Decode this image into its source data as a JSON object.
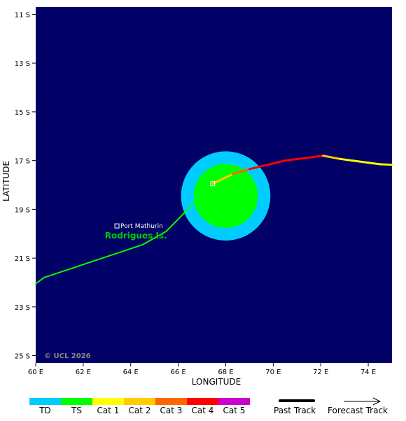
{
  "map": {
    "background_color": "#000066",
    "lon_range": [
      60,
      75
    ],
    "lat_range": [
      -25.3,
      -10.7
    ],
    "lon_ticks": [
      "60 E",
      "62 E",
      "64 E",
      "66 E",
      "68 E",
      "70 E",
      "72 E",
      "74 E"
    ],
    "lat_ticks": [
      "11 S",
      "13 S",
      "15 S",
      "17 S",
      "19 S",
      "21 S",
      "23 S",
      "25 S"
    ],
    "xlabel": "LONGITUDE",
    "ylabel": "LATITUDE",
    "copyright": "© UCL 2026"
  },
  "places": {
    "town": "Port Mathurin",
    "island": "Rodrigues Is.",
    "town_lonlat": [
      63.42,
      -19.68
    ],
    "island_lonlat": [
      63.5,
      -20.05
    ]
  },
  "storm": {
    "center_lonlat": [
      68.0,
      -18.45
    ],
    "wind_radius_deg": {
      "td": 1.88,
      "ts": 1.35
    },
    "current_position_lonlat": [
      67.45,
      -17.95
    ]
  },
  "past_track": [
    {
      "lonlat": [
        60.0,
        -22.05
      ],
      "category": "TS"
    },
    {
      "lonlat": [
        60.35,
        -21.8
      ],
      "category": "TS"
    },
    {
      "lonlat": [
        62.5,
        -21.1
      ],
      "category": "TS"
    },
    {
      "lonlat": [
        64.5,
        -20.45
      ],
      "category": "TS"
    },
    {
      "lonlat": [
        65.5,
        -19.9
      ],
      "category": "TS"
    },
    {
      "lonlat": [
        66.5,
        -18.9
      ],
      "category": "TS"
    },
    {
      "lonlat": [
        67.45,
        -17.95
      ],
      "category": "TS"
    }
  ],
  "forecast_track": [
    {
      "lonlat": [
        67.45,
        -17.95
      ],
      "category": "Cat 1"
    },
    {
      "lonlat": [
        68.3,
        -17.55
      ],
      "category": "Cat 2"
    },
    {
      "lonlat": [
        69.0,
        -17.35
      ],
      "category": "Cat 3"
    },
    {
      "lonlat": [
        70.5,
        -17.0
      ],
      "category": "Cat 4"
    },
    {
      "lonlat": [
        72.1,
        -16.8
      ],
      "category": "Cat 4"
    },
    {
      "lonlat": [
        72.8,
        -16.93
      ],
      "category": "Cat 2"
    },
    {
      "lonlat": [
        74.5,
        -17.15
      ],
      "category": "Cat 1"
    },
    {
      "lonlat": [
        75.0,
        -17.17
      ],
      "category": "Cat 1"
    }
  ],
  "legend": {
    "categories": [
      {
        "label": "TD",
        "color": "#00ccff"
      },
      {
        "label": "TS",
        "color": "#00ff00"
      },
      {
        "label": "Cat 1",
        "color": "#ffff00"
      },
      {
        "label": "Cat 2",
        "color": "#ffcc00"
      },
      {
        "label": "Cat 3",
        "color": "#ff6600"
      },
      {
        "label": "Cat 4",
        "color": "#ff0000"
      },
      {
        "label": "Cat 5",
        "color": "#cc00cc"
      }
    ],
    "past_track_label": "Past Track",
    "forecast_track_label": "Forecast Track"
  }
}
